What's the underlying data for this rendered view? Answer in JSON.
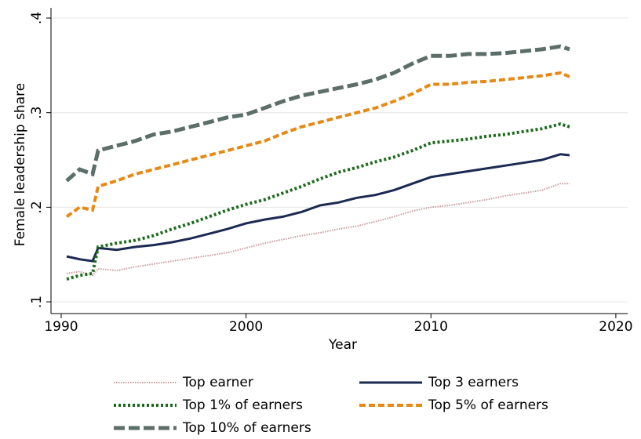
{
  "chart_data": {
    "type": "line",
    "x_label": "Year",
    "y_label": "Female leadership share",
    "x": [
      1990.3,
      1991,
      1991.7,
      1992,
      1993,
      1994,
      1995,
      1996,
      1997,
      1998,
      1999,
      2000,
      2001,
      2002,
      2003,
      2004,
      2005,
      2006,
      2007,
      2008,
      2009,
      2010,
      2011,
      2012,
      2013,
      2014,
      2015,
      2016,
      2017,
      2017.5
    ],
    "series": [
      {
        "name": "Top earner",
        "color": "#c89a9e",
        "dash": "1.5,1.5",
        "width": 2,
        "values": [
          0.13,
          0.132,
          0.128,
          0.135,
          0.133,
          0.137,
          0.14,
          0.143,
          0.146,
          0.149,
          0.152,
          0.157,
          0.162,
          0.166,
          0.17,
          0.173,
          0.177,
          0.18,
          0.185,
          0.19,
          0.196,
          0.2,
          0.202,
          0.205,
          0.208,
          0.212,
          0.215,
          0.218,
          0.225,
          0.225
        ]
      },
      {
        "name": "Top 3 earners",
        "color": "#1b2a52",
        "dash": "none",
        "width": 3,
        "values": [
          0.148,
          0.145,
          0.143,
          0.157,
          0.155,
          0.158,
          0.16,
          0.163,
          0.167,
          0.172,
          0.177,
          0.183,
          0.187,
          0.19,
          0.195,
          0.202,
          0.205,
          0.21,
          0.213,
          0.218,
          0.225,
          0.232,
          0.235,
          0.238,
          0.241,
          0.244,
          0.247,
          0.25,
          0.256,
          0.255
        ]
      },
      {
        "name": "Top 1% of earners",
        "color": "#1a6b1a",
        "dash": "3,3",
        "width": 4,
        "values": [
          0.124,
          0.128,
          0.13,
          0.158,
          0.162,
          0.165,
          0.17,
          0.177,
          0.183,
          0.19,
          0.197,
          0.203,
          0.208,
          0.215,
          0.222,
          0.23,
          0.237,
          0.242,
          0.248,
          0.253,
          0.26,
          0.268,
          0.27,
          0.272,
          0.275,
          0.277,
          0.28,
          0.283,
          0.288,
          0.285
        ]
      },
      {
        "name": "Top 5% of earners",
        "color": "#e58a16",
        "dash": "8,4",
        "width": 4,
        "values": [
          0.19,
          0.2,
          0.197,
          0.222,
          0.228,
          0.235,
          0.24,
          0.245,
          0.25,
          0.255,
          0.26,
          0.265,
          0.27,
          0.278,
          0.285,
          0.29,
          0.295,
          0.3,
          0.305,
          0.312,
          0.32,
          0.33,
          0.33,
          0.332,
          0.333,
          0.335,
          0.337,
          0.339,
          0.342,
          0.338
        ]
      },
      {
        "name": "Top 10% of earners",
        "color": "#5b6e69",
        "dash": "14,5",
        "width": 5,
        "values": [
          0.228,
          0.24,
          0.235,
          0.26,
          0.265,
          0.27,
          0.277,
          0.28,
          0.285,
          0.29,
          0.295,
          0.298,
          0.305,
          0.312,
          0.318,
          0.322,
          0.326,
          0.33,
          0.335,
          0.342,
          0.352,
          0.36,
          0.36,
          0.362,
          0.362,
          0.363,
          0.365,
          0.367,
          0.37,
          0.367
        ]
      }
    ],
    "xlim": [
      1989.45,
      2020.64
    ],
    "xticks": [
      1990,
      2000,
      2010,
      2020
    ],
    "ylim": [
      0.0876,
      0.4108
    ],
    "yticks": [
      {
        "value": 0.1,
        "label": ".1"
      },
      {
        "value": 0.2,
        "label": ".2"
      },
      {
        "value": 0.3,
        "label": ".3"
      },
      {
        "value": 0.4,
        "label": ".4"
      }
    ],
    "grid": true
  }
}
